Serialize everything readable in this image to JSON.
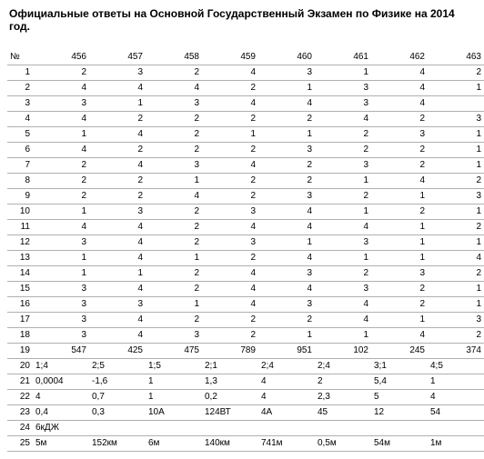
{
  "title": "Официальные ответы на Основной Государственный Экзамен по Физике на 2014 год.",
  "columns": [
    "№",
    "456",
    "457",
    "458",
    "459",
    "460",
    "461",
    "462",
    "463"
  ],
  "rows": [
    [
      "1",
      "2",
      "3",
      "2",
      "4",
      "3",
      "1",
      "4",
      "2"
    ],
    [
      "2",
      "4",
      "4",
      "4",
      "2",
      "1",
      "3",
      "4",
      "1"
    ],
    [
      "3",
      "3",
      "1",
      "3",
      "4",
      "4",
      "3",
      "4",
      ""
    ],
    [
      "4",
      "4",
      "2",
      "2",
      "2",
      "2",
      "4",
      "2",
      "3"
    ],
    [
      "5",
      "1",
      "4",
      "2",
      "1",
      "1",
      "2",
      "3",
      "1"
    ],
    [
      "6",
      "4",
      "2",
      "2",
      "2",
      "3",
      "2",
      "2",
      "1"
    ],
    [
      "7",
      "2",
      "4",
      "3",
      "4",
      "2",
      "3",
      "2",
      "1"
    ],
    [
      "8",
      "2",
      "2",
      "1",
      "2",
      "2",
      "1",
      "4",
      "2"
    ],
    [
      "9",
      "2",
      "2",
      "4",
      "2",
      "3",
      "2",
      "1",
      "3"
    ],
    [
      "10",
      "1",
      "3",
      "2",
      "3",
      "4",
      "1",
      "2",
      "1"
    ],
    [
      "11",
      "4",
      "4",
      "2",
      "4",
      "4",
      "4",
      "1",
      "2"
    ],
    [
      "12",
      "3",
      "4",
      "2",
      "3",
      "1",
      "3",
      "1",
      "1"
    ],
    [
      "13",
      "1",
      "4",
      "1",
      "2",
      "4",
      "1",
      "1",
      "4"
    ],
    [
      "14",
      "1",
      "1",
      "2",
      "4",
      "3",
      "2",
      "3",
      "2"
    ],
    [
      "15",
      "3",
      "4",
      "2",
      "4",
      "4",
      "3",
      "2",
      "1"
    ],
    [
      "16",
      "3",
      "3",
      "1",
      "4",
      "3",
      "4",
      "2",
      "1"
    ],
    [
      "17",
      "3",
      "4",
      "2",
      "2",
      "2",
      "4",
      "1",
      "3"
    ],
    [
      "18",
      "3",
      "4",
      "3",
      "2",
      "1",
      "1",
      "4",
      "2"
    ],
    [
      "19",
      "547",
      "425",
      "475",
      "789",
      "951",
      "102",
      "245",
      "374"
    ],
    [
      "20",
      "1;4",
      "2;5",
      "1;5",
      "2;1",
      "2;4",
      "2;4",
      "3;1",
      "4;5"
    ],
    [
      "21",
      "0,0004",
      "-1,6",
      "1",
      "1,3",
      "4",
      "2",
      "5,4",
      "1"
    ],
    [
      "22",
      "4",
      "0,7",
      "1",
      "0,2",
      "4",
      "2,3",
      "5",
      "4"
    ],
    [
      "23",
      "0,4",
      "0,3",
      "10А",
      "124ВТ",
      "4А",
      "45",
      "12",
      "54"
    ],
    [
      "24",
      "6кДЖ",
      "",
      "",
      "",
      "",
      "",
      "",
      ""
    ],
    [
      "25",
      "5м",
      "152км",
      "6м",
      "140км",
      "741м",
      "0,5м",
      "54м",
      "1м"
    ]
  ],
  "left_align_rows_from": 19
}
